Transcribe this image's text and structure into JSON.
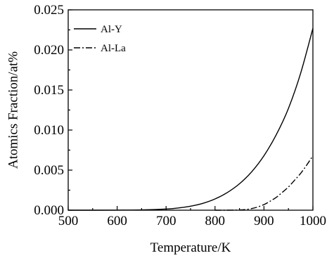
{
  "chart_data": {
    "type": "line",
    "title": "",
    "xlabel": "Temperature/K",
    "ylabel": "Atomics Fraction/at%",
    "xlim": [
      500,
      1000
    ],
    "ylim": [
      0.0,
      0.025
    ],
    "x_ticks": [
      "500",
      "600",
      "700",
      "800",
      "900",
      "1000"
    ],
    "y_ticks": [
      "0.000",
      "0.005",
      "0.010",
      "0.015",
      "0.020",
      "0.025"
    ],
    "grid": false,
    "legend_position": "top-left",
    "series": [
      {
        "name": "Al-Y",
        "line_style": "solid",
        "color": "#000000",
        "x": [
          500,
          550,
          600,
          650,
          700,
          725,
          750,
          775,
          800,
          825,
          850,
          875,
          900,
          925,
          950,
          975,
          1000
        ],
        "y": [
          0.0,
          0.0,
          1e-05,
          4e-05,
          0.00015,
          0.00028,
          0.0005,
          0.00085,
          0.0014,
          0.0022,
          0.0033,
          0.0048,
          0.0068,
          0.0094,
          0.0127,
          0.0171,
          0.0227
        ]
      },
      {
        "name": "Al-La",
        "line_style": "dash-dot",
        "color": "#000000",
        "x": [
          800,
          825,
          850,
          862,
          875,
          887,
          900,
          912,
          925,
          937,
          950,
          962,
          975,
          987,
          1000
        ],
        "y": [
          0.0,
          0.0,
          3e-05,
          8e-05,
          0.0002,
          0.0004,
          0.0007,
          0.0011,
          0.0016,
          0.0022,
          0.0029,
          0.0037,
          0.0046,
          0.0056,
          0.0068
        ]
      }
    ]
  }
}
